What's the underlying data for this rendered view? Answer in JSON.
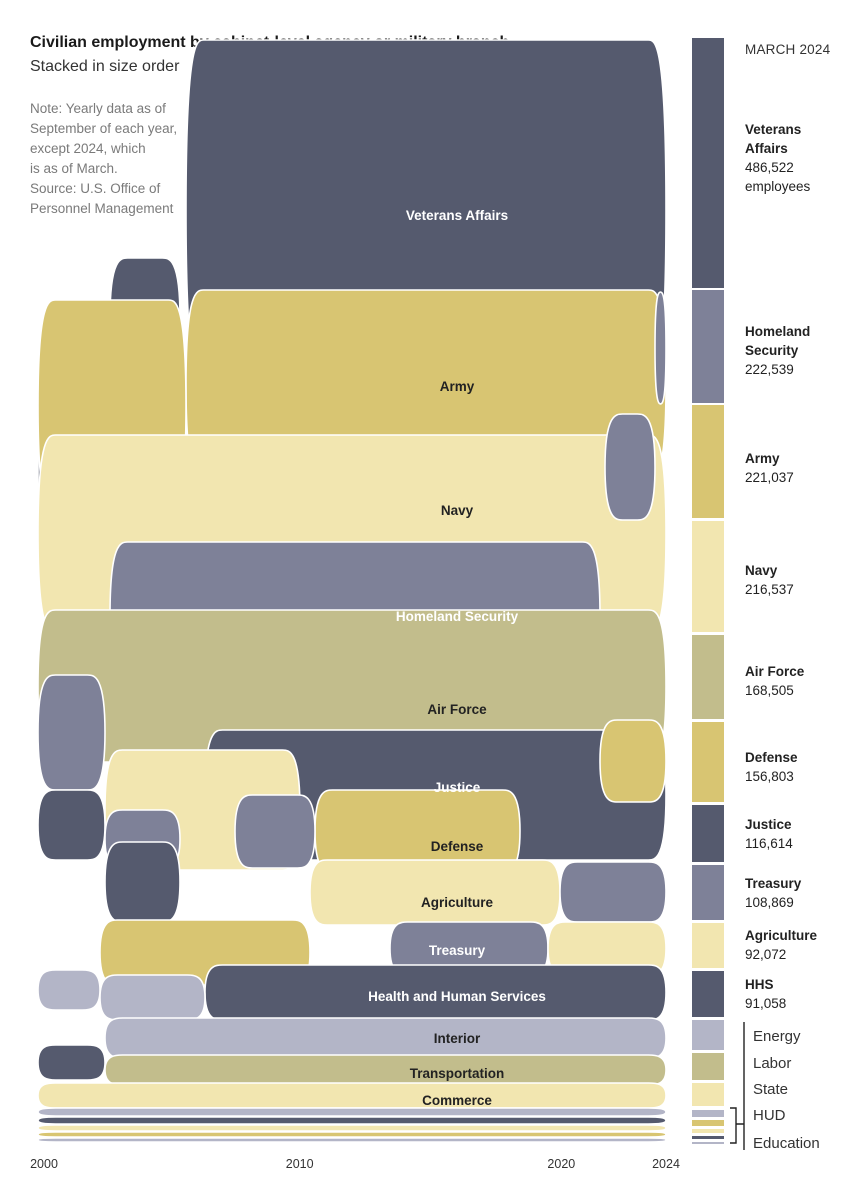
{
  "title": "Civilian employment by cabinet-level agency or military branch",
  "subtitle": "Stacked in size order",
  "note": "Note: Yearly data as of\nSeptember of each year,\nexcept 2024, which\nis as of March.\nSource: U.S. Office of\nPersonnel Management",
  "legend_date": "MARCH 2024",
  "unit_label": "employees",
  "colors": {
    "dark": "#555a6e",
    "mid": "#7e8198",
    "light_gray": "#b3b5c7",
    "gold": "#d8c572",
    "pale": "#f2e6b0",
    "olive": "#c2bd8c"
  },
  "chart_data": {
    "type": "area",
    "subtype": "ranked stream (bump area) chart",
    "x_range": [
      2000,
      2024
    ],
    "x_ticks": [
      2000,
      2010,
      2020,
      2024
    ],
    "agencies_2024": [
      {
        "name": "Veterans Affairs",
        "legend_name": "Veterans\nAffairs",
        "value": 486522,
        "value_label": "486,522",
        "color": "#555a6e"
      },
      {
        "name": "Homeland Security",
        "legend_name": "Homeland\nSecurity",
        "value": 222539,
        "value_label": "222,539",
        "color": "#7e8198"
      },
      {
        "name": "Army",
        "legend_name": "Army",
        "value": 221037,
        "value_label": "221,037",
        "color": "#d8c572"
      },
      {
        "name": "Navy",
        "legend_name": "Navy",
        "value": 216537,
        "value_label": "216,537",
        "color": "#f2e6b0"
      },
      {
        "name": "Air Force",
        "legend_name": "Air Force",
        "value": 168505,
        "value_label": "168,505",
        "color": "#c2bd8c"
      },
      {
        "name": "Defense",
        "legend_name": "Defense",
        "value": 156803,
        "value_label": "156,803",
        "color": "#d8c572"
      },
      {
        "name": "Justice",
        "legend_name": "Justice",
        "value": 116614,
        "value_label": "116,614",
        "color": "#555a6e"
      },
      {
        "name": "Treasury",
        "legend_name": "Treasury",
        "value": 108869,
        "value_label": "108,869",
        "color": "#7e8198"
      },
      {
        "name": "Agriculture",
        "legend_name": "Agriculture",
        "value": 92072,
        "value_label": "92,072",
        "color": "#f2e6b0"
      },
      {
        "name": "HHS",
        "legend_name": "HHS",
        "value": 91058,
        "value_label": "91,058",
        "color": "#555a6e"
      },
      {
        "name": "Energy",
        "legend_name": "Energy",
        "color": "#b3b5c7"
      },
      {
        "name": "Labor",
        "legend_name": "Labor",
        "color": "#c2bd8c"
      },
      {
        "name": "State",
        "legend_name": "State",
        "color": "#f2e6b0"
      },
      {
        "name": "HUD",
        "legend_name": "HUD",
        "color": "#b3b5c7"
      },
      {
        "name": "Education",
        "legend_name": "Education",
        "color": "#d8c572"
      }
    ],
    "stream_labels": [
      "Veterans Affairs",
      "Army",
      "Navy",
      "Homeland Security",
      "Air Force",
      "Justice",
      "Defense",
      "Agriculture",
      "Treasury",
      "Health and Human Services",
      "Interior",
      "Transportation",
      "Commerce"
    ]
  }
}
